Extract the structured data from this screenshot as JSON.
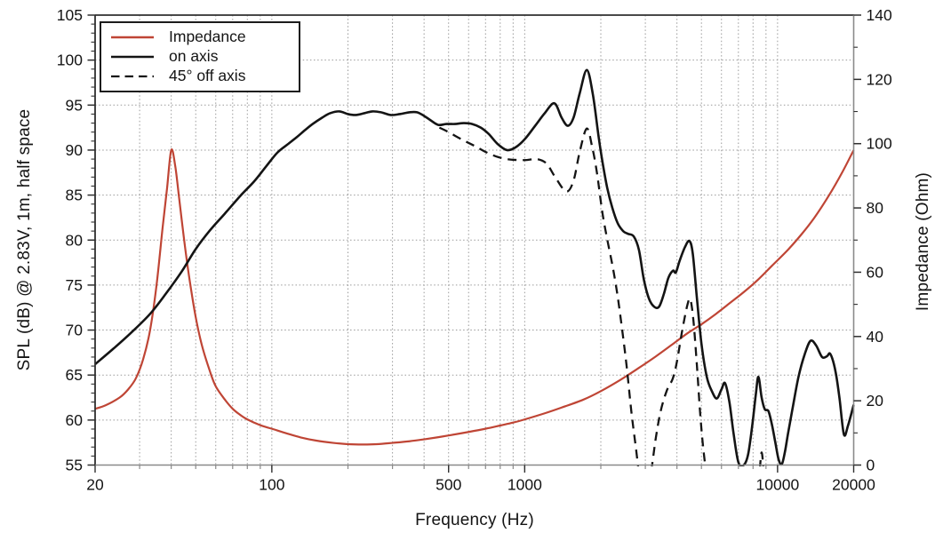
{
  "chart_data": {
    "type": "line",
    "title": "",
    "x_axis": {
      "label": "Frequency (Hz)",
      "scale": "log",
      "range": [
        20,
        20000
      ],
      "labeled_ticks": [
        20,
        100,
        500,
        1000,
        10000,
        20000
      ],
      "minor_ticks": [
        30,
        40,
        50,
        60,
        70,
        80,
        90,
        100,
        200,
        300,
        400,
        500,
        600,
        700,
        800,
        900,
        1000,
        2000,
        3000,
        4000,
        5000,
        6000,
        7000,
        8000,
        9000,
        10000
      ]
    },
    "y_axis_left": {
      "label": "SPL (dB) @ 2.83V, 1m, half space",
      "range": [
        55,
        105
      ],
      "major_tick_step": 5,
      "minor_tick_step": 1,
      "gridline_values": [
        60,
        65,
        70,
        75,
        80,
        85,
        90,
        95,
        100
      ]
    },
    "y_axis_right": {
      "label": "Impedance (Ohm)",
      "range": [
        0,
        140
      ],
      "major_tick_step": 20,
      "minor_tick_step": 10
    },
    "grid": true,
    "colors": {
      "impedance": "#bf4535",
      "spl": "#141414",
      "gridline": "#9a9a9a",
      "frame_dark": "#2f2f2f",
      "frame_light": "#8a8a8a",
      "text": "#141414"
    },
    "legend": {
      "position": "top-left",
      "items": [
        {
          "label": "Impedance",
          "color": "#bf4535",
          "line_style": "solid"
        },
        {
          "label": "on axis",
          "color": "#141414",
          "line_style": "solid"
        },
        {
          "label": "45° off axis",
          "color": "#141414",
          "line_style": "dashed"
        }
      ]
    },
    "series": [
      {
        "name": "Impedance",
        "axis": "right",
        "unit": "Ohm",
        "color": "#bf4535",
        "line_style": "solid",
        "points": [
          [
            20,
            17.5
          ],
          [
            22,
            18.6
          ],
          [
            25,
            21
          ],
          [
            27,
            23.5
          ],
          [
            29,
            27
          ],
          [
            31,
            33
          ],
          [
            33,
            42
          ],
          [
            35,
            56
          ],
          [
            37,
            74
          ],
          [
            38.5,
            86
          ],
          [
            40,
            98
          ],
          [
            41.5,
            93
          ],
          [
            43,
            83
          ],
          [
            45,
            70
          ],
          [
            47,
            59
          ],
          [
            50,
            46
          ],
          [
            53,
            37
          ],
          [
            57,
            29
          ],
          [
            60,
            24.5
          ],
          [
            65,
            20.5
          ],
          [
            70,
            17.5
          ],
          [
            75,
            15.6
          ],
          [
            80,
            14.2
          ],
          [
            90,
            12.4
          ],
          [
            100,
            11.3
          ],
          [
            115,
            9.8
          ],
          [
            130,
            8.6
          ],
          [
            150,
            7.6
          ],
          [
            175,
            6.9
          ],
          [
            200,
            6.5
          ],
          [
            230,
            6.4
          ],
          [
            260,
            6.5
          ],
          [
            300,
            6.9
          ],
          [
            350,
            7.4
          ],
          [
            400,
            8
          ],
          [
            450,
            8.6
          ],
          [
            500,
            9.2
          ],
          [
            600,
            10.3
          ],
          [
            700,
            11.3
          ],
          [
            800,
            12.3
          ],
          [
            900,
            13.2
          ],
          [
            1000,
            14.2
          ],
          [
            1200,
            16.1
          ],
          [
            1400,
            17.9
          ],
          [
            1700,
            20.3
          ],
          [
            2000,
            23
          ],
          [
            2400,
            26.6
          ],
          [
            2800,
            30
          ],
          [
            3300,
            33.8
          ],
          [
            3800,
            37.3
          ],
          [
            4400,
            41
          ],
          [
            5000,
            43.8
          ],
          [
            5700,
            47
          ],
          [
            6500,
            50.5
          ],
          [
            7400,
            54
          ],
          [
            8400,
            57.8
          ],
          [
            9500,
            62
          ],
          [
            11000,
            67
          ],
          [
            12500,
            72
          ],
          [
            14000,
            77
          ],
          [
            16000,
            84
          ],
          [
            18000,
            91
          ],
          [
            20000,
            98
          ]
        ]
      },
      {
        "name": "on axis",
        "axis": "left",
        "unit": "dB",
        "color": "#141414",
        "line_style": "solid",
        "points": [
          [
            20,
            66.2
          ],
          [
            24,
            68.1
          ],
          [
            28,
            69.8
          ],
          [
            33,
            71.8
          ],
          [
            38,
            74
          ],
          [
            44,
            76.5
          ],
          [
            50,
            79
          ],
          [
            57,
            81.1
          ],
          [
            65,
            82.9
          ],
          [
            75,
            84.9
          ],
          [
            85,
            86.5
          ],
          [
            95,
            88.2
          ],
          [
            105,
            89.7
          ],
          [
            115,
            90.6
          ],
          [
            125,
            91.4
          ],
          [
            135,
            92.2
          ],
          [
            145,
            92.9
          ],
          [
            158,
            93.6
          ],
          [
            170,
            94.1
          ],
          [
            185,
            94.3
          ],
          [
            200,
            94
          ],
          [
            215,
            93.9
          ],
          [
            232,
            94.1
          ],
          [
            250,
            94.3
          ],
          [
            270,
            94.2
          ],
          [
            295,
            93.9
          ],
          [
            320,
            94
          ],
          [
            350,
            94.2
          ],
          [
            375,
            94.2
          ],
          [
            400,
            93.8
          ],
          [
            425,
            93.3
          ],
          [
            455,
            92.8
          ],
          [
            490,
            92.9
          ],
          [
            530,
            92.9
          ],
          [
            575,
            93
          ],
          [
            620,
            92.9
          ],
          [
            670,
            92.5
          ],
          [
            720,
            91.8
          ],
          [
            780,
            90.7
          ],
          [
            850,
            90
          ],
          [
            920,
            90.3
          ],
          [
            1000,
            91.2
          ],
          [
            1100,
            92.7
          ],
          [
            1200,
            94.1
          ],
          [
            1310,
            95.2
          ],
          [
            1400,
            93.6
          ],
          [
            1480,
            92.7
          ],
          [
            1560,
            93.6
          ],
          [
            1650,
            96.3
          ],
          [
            1760,
            98.9
          ],
          [
            1860,
            96.2
          ],
          [
            1960,
            91.5
          ],
          [
            2030,
            88.7
          ],
          [
            2120,
            85.8
          ],
          [
            2220,
            83.6
          ],
          [
            2330,
            81.9
          ],
          [
            2450,
            81
          ],
          [
            2560,
            80.7
          ],
          [
            2700,
            80.4
          ],
          [
            2830,
            78.9
          ],
          [
            2960,
            75.6
          ],
          [
            3100,
            73.5
          ],
          [
            3250,
            72.6
          ],
          [
            3400,
            72.6
          ],
          [
            3550,
            74
          ],
          [
            3700,
            75.8
          ],
          [
            3860,
            76.6
          ],
          [
            3960,
            76.4
          ],
          [
            4100,
            77.7
          ],
          [
            4300,
            79.2
          ],
          [
            4480,
            79.9
          ],
          [
            4620,
            78.5
          ],
          [
            4800,
            73.5
          ],
          [
            5000,
            68.5
          ],
          [
            5250,
            64.8
          ],
          [
            5500,
            63.2
          ],
          [
            5750,
            62.4
          ],
          [
            6000,
            63.4
          ],
          [
            6200,
            64.1
          ],
          [
            6450,
            62
          ],
          [
            6700,
            58.5
          ],
          [
            7000,
            55.3
          ],
          [
            7350,
            55
          ],
          [
            7650,
            56.2
          ],
          [
            7950,
            59.5
          ],
          [
            8200,
            62.8
          ],
          [
            8400,
            64.8
          ],
          [
            8650,
            62.5
          ],
          [
            8900,
            61.2
          ],
          [
            9200,
            61
          ],
          [
            9500,
            59.5
          ],
          [
            9800,
            57.5
          ],
          [
            10100,
            55.6
          ],
          [
            10400,
            55.1
          ],
          [
            10700,
            56.5
          ],
          [
            11000,
            58.5
          ],
          [
            11500,
            61.5
          ],
          [
            12100,
            64.8
          ],
          [
            12800,
            67.3
          ],
          [
            13500,
            68.8
          ],
          [
            14200,
            68.3
          ],
          [
            15000,
            67
          ],
          [
            15700,
            67.1
          ],
          [
            16100,
            67.4
          ],
          [
            16600,
            66.5
          ],
          [
            17100,
            64.8
          ],
          [
            17600,
            62.3
          ],
          [
            18300,
            58.4
          ],
          [
            19000,
            59.4
          ],
          [
            20000,
            61.7
          ]
        ]
      },
      {
        "name": "45° off axis",
        "axis": "left",
        "unit": "dB",
        "color": "#141414",
        "line_style": "dashed",
        "points": [
          [
            460,
            92.5
          ],
          [
            500,
            92
          ],
          [
            545,
            91.4
          ],
          [
            590,
            90.9
          ],
          [
            640,
            90.4
          ],
          [
            700,
            89.8
          ],
          [
            770,
            89.3
          ],
          [
            850,
            89
          ],
          [
            930,
            88.9
          ],
          [
            1020,
            88.9
          ],
          [
            1120,
            89
          ],
          [
            1220,
            88.5
          ],
          [
            1320,
            87
          ],
          [
            1460,
            85.4
          ],
          [
            1560,
            86.6
          ],
          [
            1650,
            89.8
          ],
          [
            1760,
            92.4
          ],
          [
            1850,
            90.3
          ],
          [
            1930,
            87.5
          ],
          [
            2030,
            83
          ],
          [
            2130,
            79.8
          ],
          [
            2230,
            77
          ],
          [
            2330,
            73.8
          ],
          [
            2430,
            70
          ],
          [
            2530,
            66
          ],
          [
            2640,
            61
          ],
          [
            2750,
            57
          ],
          [
            2870,
            53
          ],
          [
            3000,
            51.5
          ],
          [
            3150,
            54
          ],
          [
            3300,
            58
          ],
          [
            3450,
            61
          ],
          [
            3650,
            63.3
          ],
          [
            3850,
            64.6
          ],
          [
            4000,
            66.5
          ],
          [
            4200,
            70
          ],
          [
            4400,
            72.8
          ],
          [
            4520,
            73.4
          ],
          [
            4650,
            71
          ],
          [
            4800,
            66
          ],
          [
            4950,
            60.5
          ],
          [
            5100,
            56.5
          ],
          [
            5300,
            53
          ],
          [
            5600,
            50.5
          ],
          [
            8200,
            50.5
          ],
          [
            8450,
            53.5
          ],
          [
            8650,
            56.4
          ],
          [
            8850,
            53.5
          ],
          [
            9050,
            50.5
          ]
        ]
      }
    ]
  }
}
